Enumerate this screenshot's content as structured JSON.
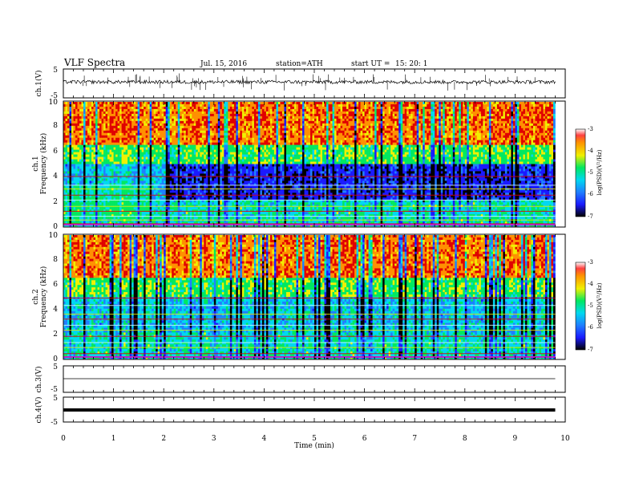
{
  "header": {
    "title": "VLF Spectra",
    "date": "Jul. 15, 2016",
    "station": "station=ATH",
    "start": "start UT =",
    "start_time": "15: 20: 1"
  },
  "colormap": [
    "#000000",
    "#1a1aff",
    "#1f7fff",
    "#00d8f0",
    "#00e860",
    "#f0f000",
    "#ff9000",
    "#e00000"
  ],
  "chart_data": [
    {
      "type": "line",
      "name": "ch1-waveform",
      "ylabel": "ch.1(V)",
      "ylim": [
        -5,
        5
      ],
      "yticks": [
        "5",
        "-5"
      ],
      "x": "time 0 to 9.8 min",
      "description_values": {
        "mean_level": 0.5,
        "noise_amplitude": 0.6,
        "spike_amplitude": 3
      }
    },
    {
      "type": "heatmap",
      "name": "ch1-spectrogram",
      "ylabel": "Frequency (kHz)",
      "channel": "ch.1",
      "ylim": [
        0,
        10
      ],
      "yticks": [
        "0",
        "2",
        "4",
        "6",
        "8",
        "10"
      ],
      "xlim": [
        0,
        9.8
      ],
      "colorbar": {
        "label": "log(PSD)(V²/Hz)",
        "range": [
          -7,
          -3
        ],
        "ticks": [
          "-3",
          "-4",
          "-5",
          "-6",
          "-7"
        ]
      },
      "bands_kHz": [
        0.2,
        0.5,
        0.8,
        1.2,
        1.6,
        2.1,
        2.5,
        3.0,
        3.3,
        4.0
      ]
    },
    {
      "type": "heatmap",
      "name": "ch2-spectrogram",
      "ylabel": "Frequency (kHz)",
      "channel": "ch.2",
      "ylim": [
        0,
        10
      ],
      "yticks": [
        "0",
        "2",
        "4",
        "6",
        "8",
        "10"
      ],
      "xlim": [
        0,
        9.8
      ],
      "colorbar": {
        "label": "log(PSD)(V²/Hz)",
        "range": [
          -7,
          -3
        ],
        "ticks": [
          "-3",
          "-4",
          "-5",
          "-6",
          "-7"
        ]
      },
      "bands_kHz": [
        0.4,
        0.9,
        1.3,
        1.8,
        2.3,
        2.7,
        3.2,
        3.6,
        4.3,
        4.9
      ]
    },
    {
      "type": "line",
      "name": "ch3-waveform",
      "ylabel": "ch.3(V)",
      "ylim": [
        -5,
        5
      ],
      "yticks": [
        "5",
        "-5"
      ],
      "description_values": {
        "mean_level": 0
      }
    },
    {
      "type": "line",
      "name": "ch4-waveform",
      "ylabel": "ch.4(V)",
      "ylim": [
        -5,
        5
      ],
      "yticks": [
        "5",
        "-5"
      ],
      "description_values": {
        "mean_level": 0
      }
    }
  ],
  "xaxis": {
    "label": "Time (min)",
    "range": [
      0,
      10
    ],
    "ticks": [
      "0",
      "1",
      "2",
      "3",
      "4",
      "5",
      "6",
      "7",
      "8",
      "9",
      "10"
    ]
  }
}
